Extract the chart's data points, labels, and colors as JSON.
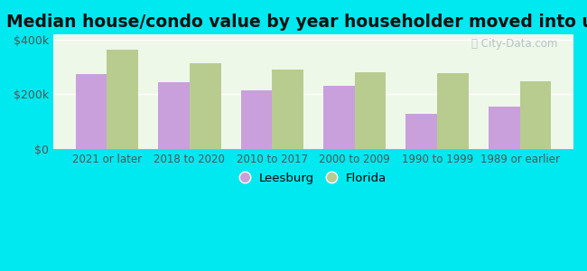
{
  "title": "Median house/condo value by year householder moved into unit",
  "categories": [
    "2021 or later",
    "2018 to 2020",
    "2010 to 2017",
    "2000 to 2009",
    "1990 to 1999",
    "1989 or earlier"
  ],
  "leesburg": [
    275000,
    245000,
    215000,
    230000,
    130000,
    155000
  ],
  "florida": [
    365000,
    315000,
    290000,
    280000,
    278000,
    248000
  ],
  "leesburg_color": "#c9a0dc",
  "florida_color": "#b8cc90",
  "background_outer": "#00e8f0",
  "background_inner_color": "#eef8e8",
  "ylim": [
    0,
    420000
  ],
  "yticks": [
    0,
    200000,
    400000
  ],
  "ytick_labels": [
    "$0",
    "$200k",
    "$400k"
  ],
  "legend_leesburg": "Leesburg",
  "legend_florida": "Florida",
  "bar_width": 0.38,
  "title_fontsize": 13.5,
  "tick_fontsize": 8.5,
  "ytick_fontsize": 9
}
